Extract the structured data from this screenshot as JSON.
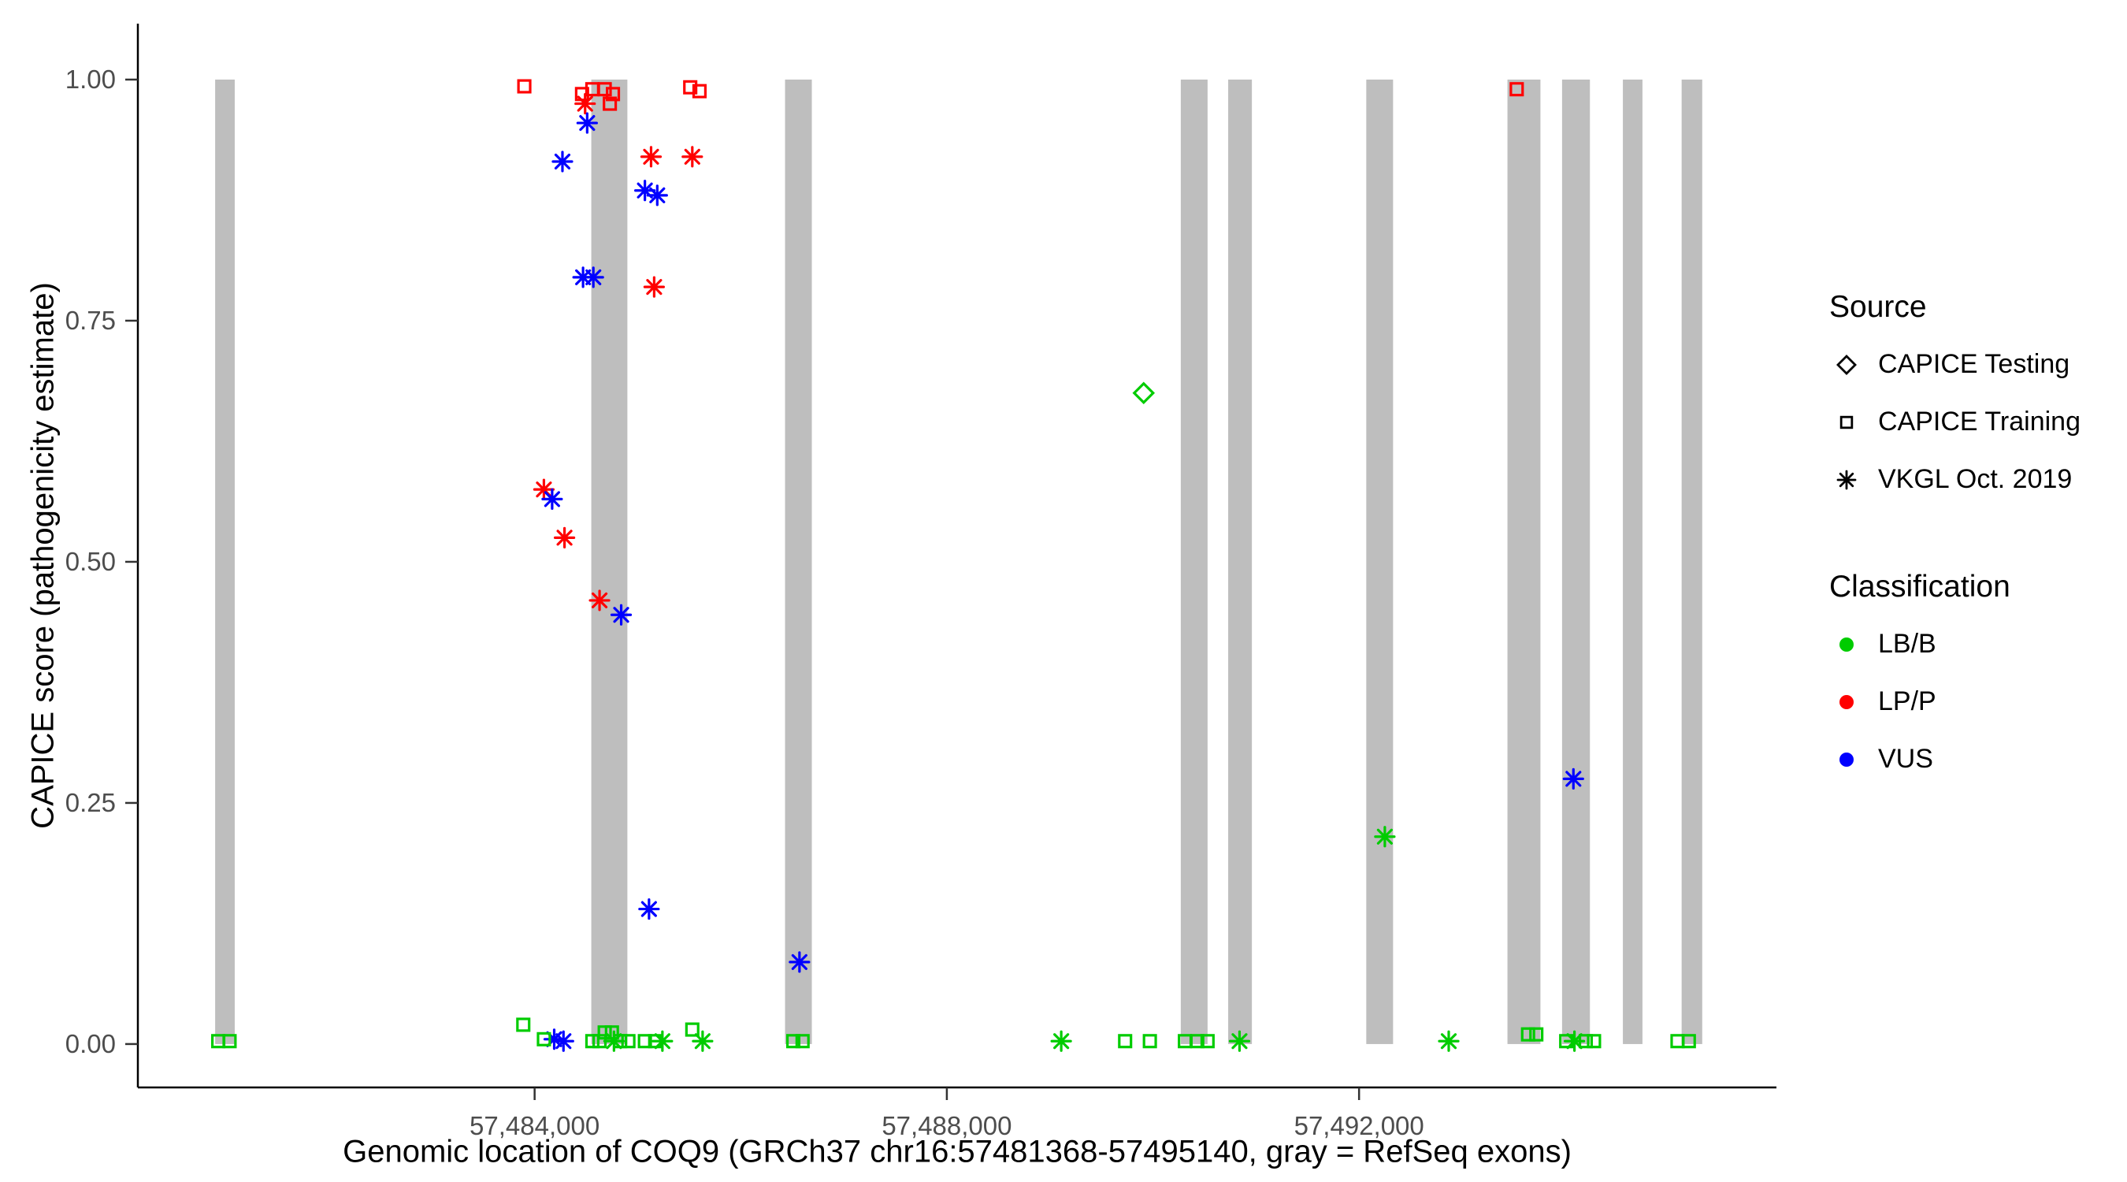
{
  "figure": {
    "y_title": "CAPICE score (pathogenicity estimate)",
    "x_title": "Genomic location of COQ9 (GRCh37 chr16:57481368-57495140, gray = RefSeq exons)"
  },
  "legend": {
    "source": {
      "title": "Source",
      "items": [
        {
          "label": "CAPICE Testing",
          "shape": "diamond"
        },
        {
          "label": "CAPICE Training",
          "shape": "square"
        },
        {
          "label": "VKGL Oct. 2019",
          "shape": "asterisk"
        }
      ]
    },
    "classification": {
      "title": "Classification",
      "items": [
        {
          "label": "LB/B"
        },
        {
          "label": "LP/P"
        },
        {
          "label": "VUS"
        }
      ]
    }
  },
  "chart_data": {
    "type": "scatter",
    "title": "",
    "xlabel": "Genomic location of COQ9 (GRCh37 chr16:57481368-57495140, gray = RefSeq exons)",
    "ylabel": "CAPICE score (pathogenicity estimate)",
    "legend_position": "right",
    "grid": false,
    "x_domain": [
      57480150,
      57496050
    ],
    "y_domain": [
      -0.045,
      1.058
    ],
    "x_ticks": [
      {
        "value": 57484000,
        "label": "57,484,000"
      },
      {
        "value": 57488000,
        "label": "57,488,000"
      },
      {
        "value": 57492000,
        "label": "57,492,000"
      }
    ],
    "y_ticks": [
      {
        "value": 0.0,
        "label": "0.00"
      },
      {
        "value": 0.25,
        "label": "0.25"
      },
      {
        "value": 0.5,
        "label": "0.50"
      },
      {
        "value": 0.75,
        "label": "0.75"
      },
      {
        "value": 1.0,
        "label": "1.00"
      }
    ],
    "exon_color": "#bebebe",
    "exons": [
      [
        57480900,
        57481090
      ],
      [
        57484550,
        57484900
      ],
      [
        57486430,
        57486690
      ],
      [
        57490270,
        57490530
      ],
      [
        57490730,
        57490960
      ],
      [
        57492070,
        57492330
      ],
      [
        57493440,
        57493760
      ],
      [
        57493970,
        57494240
      ],
      [
        57494560,
        57494750
      ],
      [
        57495130,
        57495330
      ]
    ],
    "colors": {
      "LB/B": "#00cc00",
      "LP/P": "#ff0000",
      "VUS": "#0000ff"
    },
    "shapes": {
      "CAPICE Testing": "diamond",
      "CAPICE Training": "square",
      "VKGL Oct. 2019": "asterisk"
    },
    "points": [
      {
        "x": 57483900,
        "y": 0.993,
        "source": "CAPICE Training",
        "class": "LP/P"
      },
      {
        "x": 57484460,
        "y": 0.985,
        "source": "CAPICE Training",
        "class": "LP/P"
      },
      {
        "x": 57484560,
        "y": 0.99,
        "source": "CAPICE Training",
        "class": "LP/P"
      },
      {
        "x": 57484680,
        "y": 0.99,
        "source": "CAPICE Training",
        "class": "LP/P"
      },
      {
        "x": 57484760,
        "y": 0.985,
        "source": "CAPICE Training",
        "class": "LP/P"
      },
      {
        "x": 57484730,
        "y": 0.975,
        "source": "CAPICE Training",
        "class": "LP/P"
      },
      {
        "x": 57485510,
        "y": 0.992,
        "source": "CAPICE Training",
        "class": "LP/P"
      },
      {
        "x": 57485600,
        "y": 0.988,
        "source": "CAPICE Training",
        "class": "LP/P"
      },
      {
        "x": 57493530,
        "y": 0.99,
        "source": "CAPICE Training",
        "class": "LP/P"
      },
      {
        "x": 57484490,
        "y": 0.975,
        "source": "VKGL Oct. 2019",
        "class": "LP/P"
      },
      {
        "x": 57485130,
        "y": 0.92,
        "source": "VKGL Oct. 2019",
        "class": "LP/P"
      },
      {
        "x": 57485530,
        "y": 0.92,
        "source": "VKGL Oct. 2019",
        "class": "LP/P"
      },
      {
        "x": 57485160,
        "y": 0.785,
        "source": "VKGL Oct. 2019",
        "class": "LP/P"
      },
      {
        "x": 57484090,
        "y": 0.575,
        "source": "VKGL Oct. 2019",
        "class": "LP/P"
      },
      {
        "x": 57484290,
        "y": 0.525,
        "source": "VKGL Oct. 2019",
        "class": "LP/P"
      },
      {
        "x": 57484630,
        "y": 0.46,
        "source": "VKGL Oct. 2019",
        "class": "LP/P"
      },
      {
        "x": 57484510,
        "y": 0.955,
        "source": "VKGL Oct. 2019",
        "class": "VUS"
      },
      {
        "x": 57484270,
        "y": 0.915,
        "source": "VKGL Oct. 2019",
        "class": "VUS"
      },
      {
        "x": 57485070,
        "y": 0.885,
        "source": "VKGL Oct. 2019",
        "class": "VUS"
      },
      {
        "x": 57485190,
        "y": 0.88,
        "source": "VKGL Oct. 2019",
        "class": "VUS"
      },
      {
        "x": 57484470,
        "y": 0.795,
        "source": "VKGL Oct. 2019",
        "class": "VUS"
      },
      {
        "x": 57484570,
        "y": 0.795,
        "source": "VKGL Oct. 2019",
        "class": "VUS"
      },
      {
        "x": 57484170,
        "y": 0.565,
        "source": "VKGL Oct. 2019",
        "class": "VUS"
      },
      {
        "x": 57484840,
        "y": 0.445,
        "source": "VKGL Oct. 2019",
        "class": "VUS"
      },
      {
        "x": 57494080,
        "y": 0.275,
        "source": "VKGL Oct. 2019",
        "class": "VUS"
      },
      {
        "x": 57485110,
        "y": 0.14,
        "source": "VKGL Oct. 2019",
        "class": "VUS"
      },
      {
        "x": 57486570,
        "y": 0.085,
        "source": "VKGL Oct. 2019",
        "class": "VUS"
      },
      {
        "x": 57484190,
        "y": 0.005,
        "source": "VKGL Oct. 2019",
        "class": "VUS"
      },
      {
        "x": 57484280,
        "y": 0.003,
        "source": "VKGL Oct. 2019",
        "class": "VUS"
      },
      {
        "x": 57489910,
        "y": 0.675,
        "source": "CAPICE Testing",
        "class": "LB/B"
      },
      {
        "x": 57492250,
        "y": 0.215,
        "source": "VKGL Oct. 2019",
        "class": "LB/B"
      },
      {
        "x": 57484770,
        "y": 0.003,
        "source": "VKGL Oct. 2019",
        "class": "LB/B"
      },
      {
        "x": 57485240,
        "y": 0.003,
        "source": "VKGL Oct. 2019",
        "class": "LB/B"
      },
      {
        "x": 57485630,
        "y": 0.003,
        "source": "VKGL Oct. 2019",
        "class": "LB/B"
      },
      {
        "x": 57489110,
        "y": 0.003,
        "source": "VKGL Oct. 2019",
        "class": "LB/B"
      },
      {
        "x": 57490840,
        "y": 0.003,
        "source": "VKGL Oct. 2019",
        "class": "LB/B"
      },
      {
        "x": 57492870,
        "y": 0.003,
        "source": "VKGL Oct. 2019",
        "class": "LB/B"
      },
      {
        "x": 57494090,
        "y": 0.003,
        "source": "VKGL Oct. 2019",
        "class": "LB/B"
      },
      {
        "x": 57480930,
        "y": 0.003,
        "source": "CAPICE Training",
        "class": "LB/B"
      },
      {
        "x": 57481040,
        "y": 0.003,
        "source": "CAPICE Training",
        "class": "LB/B"
      },
      {
        "x": 57483890,
        "y": 0.02,
        "source": "CAPICE Training",
        "class": "LB/B"
      },
      {
        "x": 57484090,
        "y": 0.005,
        "source": "CAPICE Training",
        "class": "LB/B"
      },
      {
        "x": 57484560,
        "y": 0.003,
        "source": "CAPICE Training",
        "class": "LB/B"
      },
      {
        "x": 57484630,
        "y": 0.003,
        "source": "CAPICE Training",
        "class": "LB/B"
      },
      {
        "x": 57484680,
        "y": 0.012,
        "source": "CAPICE Training",
        "class": "LB/B"
      },
      {
        "x": 57484750,
        "y": 0.012,
        "source": "CAPICE Training",
        "class": "LB/B"
      },
      {
        "x": 57484830,
        "y": 0.003,
        "source": "CAPICE Training",
        "class": "LB/B"
      },
      {
        "x": 57484910,
        "y": 0.003,
        "source": "CAPICE Training",
        "class": "LB/B"
      },
      {
        "x": 57485070,
        "y": 0.003,
        "source": "CAPICE Training",
        "class": "LB/B"
      },
      {
        "x": 57485170,
        "y": 0.003,
        "source": "CAPICE Training",
        "class": "LB/B"
      },
      {
        "x": 57485530,
        "y": 0.015,
        "source": "CAPICE Training",
        "class": "LB/B"
      },
      {
        "x": 57486510,
        "y": 0.003,
        "source": "CAPICE Training",
        "class": "LB/B"
      },
      {
        "x": 57486600,
        "y": 0.003,
        "source": "CAPICE Training",
        "class": "LB/B"
      },
      {
        "x": 57489730,
        "y": 0.003,
        "source": "CAPICE Training",
        "class": "LB/B"
      },
      {
        "x": 57489970,
        "y": 0.003,
        "source": "CAPICE Training",
        "class": "LB/B"
      },
      {
        "x": 57490310,
        "y": 0.003,
        "source": "CAPICE Training",
        "class": "LB/B"
      },
      {
        "x": 57490430,
        "y": 0.003,
        "source": "CAPICE Training",
        "class": "LB/B"
      },
      {
        "x": 57490530,
        "y": 0.003,
        "source": "CAPICE Training",
        "class": "LB/B"
      },
      {
        "x": 57493640,
        "y": 0.01,
        "source": "CAPICE Training",
        "class": "LB/B"
      },
      {
        "x": 57493720,
        "y": 0.01,
        "source": "CAPICE Training",
        "class": "LB/B"
      },
      {
        "x": 57494010,
        "y": 0.003,
        "source": "CAPICE Training",
        "class": "LB/B"
      },
      {
        "x": 57494200,
        "y": 0.003,
        "source": "CAPICE Training",
        "class": "LB/B"
      },
      {
        "x": 57494280,
        "y": 0.003,
        "source": "CAPICE Training",
        "class": "LB/B"
      },
      {
        "x": 57495090,
        "y": 0.003,
        "source": "CAPICE Training",
        "class": "LB/B"
      },
      {
        "x": 57495200,
        "y": 0.003,
        "source": "CAPICE Training",
        "class": "LB/B"
      }
    ]
  }
}
